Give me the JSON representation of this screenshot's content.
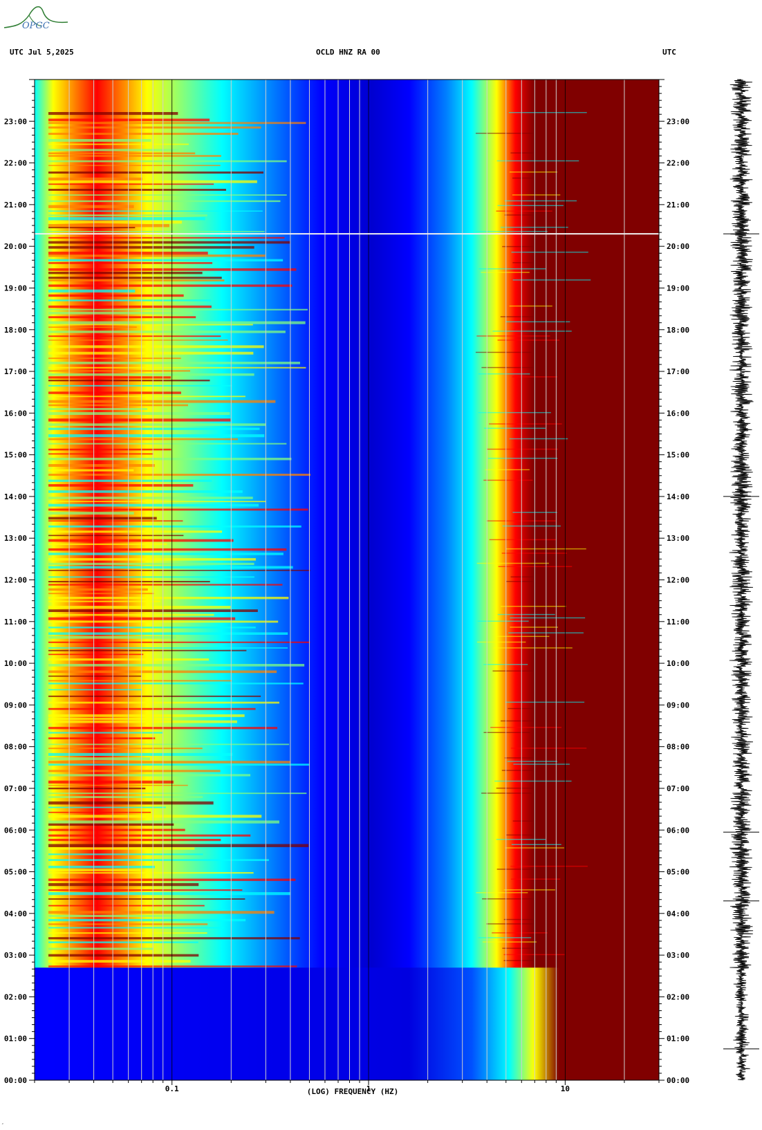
{
  "header": {
    "left": "UTC  Jul 5,2025",
    "center": "OCLD HNZ RA 00",
    "right": "UTC"
  },
  "logo": {
    "text": "OPGC"
  },
  "chart_data": {
    "type": "heatmap",
    "title": "OCLD HNZ RA 00",
    "date": "Jul 5,2025",
    "timezone": "UTC",
    "xlabel": "(LOG) FREQUENCY (HZ)",
    "xscale": "log",
    "xlim": [
      0.02,
      30
    ],
    "x_tick_labels": [
      {
        "value": 0.1,
        "label": "0.1"
      },
      {
        "value": 1,
        "label": "1"
      },
      {
        "value": 10,
        "label": "10"
      }
    ],
    "y_tick_labels": [
      "23:00",
      "22:00",
      "21:00",
      "20:00",
      "19:00",
      "18:00",
      "17:00",
      "16:00",
      "15:00",
      "14:00",
      "13:00",
      "12:00",
      "11:00",
      "10:00",
      "09:00",
      "08:00",
      "07:00",
      "06:00",
      "05:00",
      "04:00",
      "03:00",
      "02:00",
      "01:00",
      "00:00"
    ],
    "ylim_hours": [
      0,
      24
    ],
    "colormap": [
      "#00007f",
      "#0000ff",
      "#0080ff",
      "#00ffff",
      "#80ff80",
      "#ffff00",
      "#ff8000",
      "#ff0000",
      "#800000"
    ],
    "gap_line_hour": 20.3,
    "trace_color": "#000000"
  }
}
